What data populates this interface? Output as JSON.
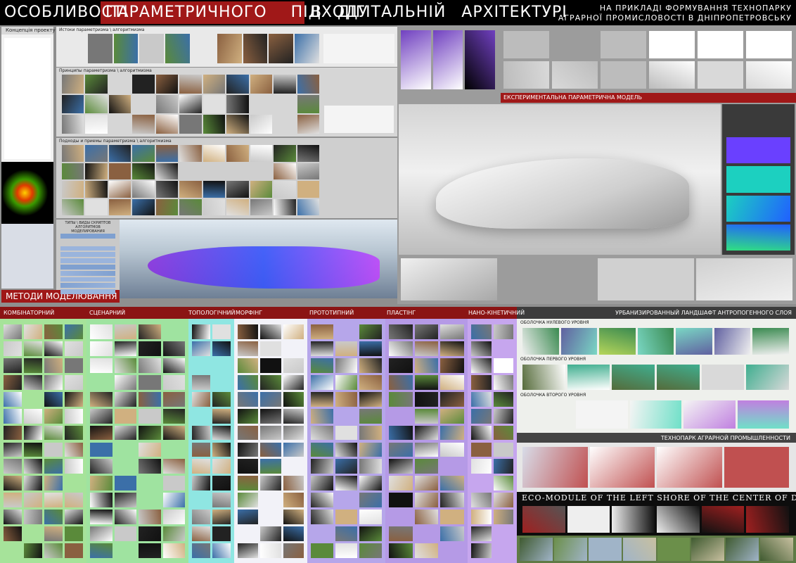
{
  "header": {
    "title_part1": "ОСОБЛИВОСТІ",
    "title_highlight": "ПАРАМЕТРИЧНОГО ПІДХОДУ",
    "title_part2": "В ДІГІТАЛЬНІЙ АРХІТЕКТУРІ",
    "subtitle_lines": [
      "НА ПРИКЛАДІ ФОРМУВАННЯ ТЕХНОПАРКУ",
      "АГРАРНОЇ ПРОМИСЛОВОСТІ В ДНІПРОПЕТРОВСЬКУ"
    ]
  },
  "theory": {
    "concept_title": "Концепція проекту",
    "origins_title": "Истоки параметризма \\ алгоритмизма",
    "principles_title": "Принципы параметризма \\ алгоритмизма",
    "approaches_title": "Подходы и приемы параметризма \\ алгоритмизма",
    "script_types_title": "ТИПЫ \\ ВИДЫ СКРИПТОВ АЛГОРИТМОВ МОДЕЛИРОВАНИЯ",
    "section_label": "МЕТОДИ МОДЕЛЮВАННЯ"
  },
  "model": {
    "title": "ЕКСПЕРИМЕНТАЛЬНА ПАРАМЕТРИЧНА МОДЕЛЬ"
  },
  "methods": {
    "columns": [
      "КОМБІНАТОРНИЙ",
      "СЦЕНАРНИЙ",
      "ТОПОЛОГІЧНИЙ",
      "МОРФІНГ",
      "ПРОТОТИПНИЙ",
      "ПЛАСТІНГ",
      "НАНО-КІНЕТИЧНИЙ"
    ]
  },
  "landscape": {
    "title": "УРБАНИЗИРОВАННЫЙ ЛАНДШАФТ АНТРОПОГЕННОГО СЛОЯ",
    "shells": [
      "ОБОЛОЧКА НУЛЕВОГО УРОВНЯ",
      "ОБОЛОЧКА ПЕРВОГО УРОВНЯ",
      "ОБОЛОЧКА ВТОРОГО УРОВНЯ"
    ],
    "technopark_title": "ТЕХНОПАРК АГРАРНОЙ ПРОМЫШЛЕННОСТИ",
    "eco_module_title": "ECO-MODULE OF THE LEFT SHORE OF THE CENTER OF DNEPROPETROVSK"
  }
}
